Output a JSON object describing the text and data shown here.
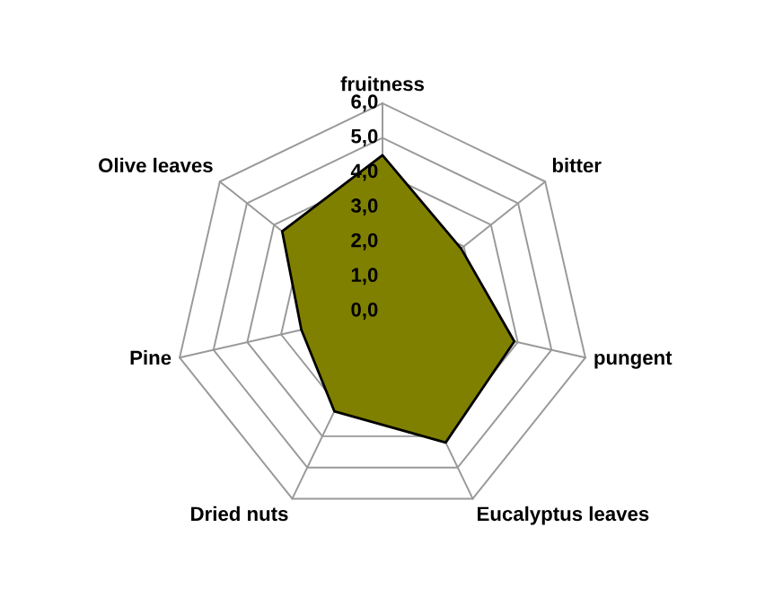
{
  "chart_data": {
    "type": "radar",
    "categories": [
      "fruitness",
      "bitter",
      "pungent",
      "Eucalyptus leaves",
      "Dried nuts",
      "Pine",
      "Olive leaves"
    ],
    "series": [
      {
        "color": "#808000",
        "values": [
          4.5,
          2.9,
          3.9,
          4.2,
          3.2,
          2.4,
          3.7
        ]
      }
    ],
    "ylim": [
      0,
      6
    ],
    "yticks": [
      {
        "value": 0,
        "label": "0,0"
      },
      {
        "value": 1,
        "label": "1,0"
      },
      {
        "value": 2,
        "label": "2,0"
      },
      {
        "value": 3,
        "label": "3,0"
      },
      {
        "value": 4,
        "label": "4,0"
      },
      {
        "value": 5,
        "label": "5,0"
      },
      {
        "value": 6,
        "label": "6,0"
      }
    ],
    "grid": true,
    "legend": false
  }
}
